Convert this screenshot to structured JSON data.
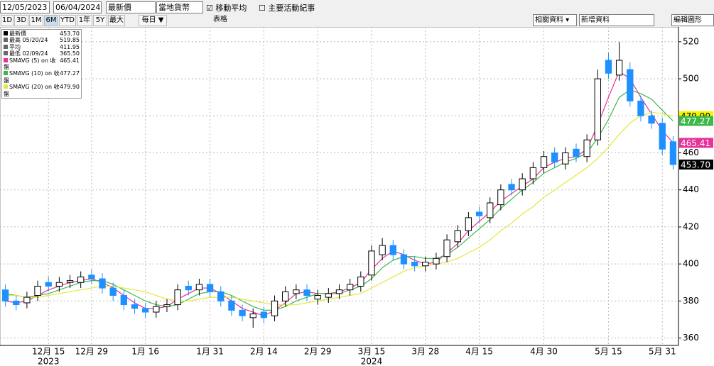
{
  "toolbar": {
    "start_date": "12/05/2023",
    "end_date": "06/04/2024",
    "price_field": "最新價",
    "currency": "當地貨幣",
    "moving_average": "移動平均",
    "events": "主要活動紀事",
    "periods": [
      "1D",
      "3D",
      "1M",
      "6M",
      "YTD",
      "1年",
      "5Y",
      "最大"
    ],
    "frequency": "每日 ▼",
    "table": "表格",
    "related": "相關資料 ▾",
    "add_data": "新增資料",
    "edit_chart": "編輯圖形"
  },
  "legend_rows": [
    {
      "label": "最新價",
      "value": "453.70"
    },
    {
      "label": "最高 05/20/24",
      "value": "519.85"
    },
    {
      "label": "平均",
      "value": "411.95"
    },
    {
      "label": "最低 02/09/24",
      "value": "365.50"
    },
    {
      "label": "SMAVG (5)  on 收盤",
      "value": "465.41"
    },
    {
      "label": "SMAVG (10)  on 收盤",
      "value": "477.27"
    },
    {
      "label": "SMAVG (20)  on 收盤",
      "value": "479.90"
    }
  ],
  "chart_data": {
    "type": "candlestick",
    "up_color": "#ffffff",
    "down_color": "#1e90ff",
    "grid": true,
    "categories": [
      null,
      null,
      null,
      null,
      "12月 15",
      null,
      null,
      null,
      "12月 29",
      null,
      null,
      null,
      null,
      "1月 16",
      null,
      null,
      null,
      null,
      null,
      "1月 31",
      null,
      null,
      null,
      null,
      "2月 14",
      null,
      null,
      null,
      null,
      "2月 29",
      null,
      null,
      null,
      null,
      "3月 15",
      null,
      null,
      null,
      null,
      "3月 28",
      null,
      null,
      null,
      null,
      "4月 15",
      null,
      null,
      null,
      null,
      null,
      "4月 30",
      null,
      null,
      null,
      null,
      null,
      "5月 15",
      null,
      null,
      null,
      null,
      "5月 31",
      null
    ],
    "year_categories": [
      null,
      null,
      null,
      null,
      "2023",
      null,
      null,
      null,
      null,
      null,
      null,
      null,
      null,
      null,
      null,
      null,
      null,
      null,
      null,
      null,
      null,
      null,
      null,
      null,
      null,
      null,
      null,
      null,
      null,
      null,
      null,
      null,
      null,
      null,
      "2024",
      null,
      null,
      null,
      null,
      null,
      null,
      null,
      null,
      null,
      null,
      null,
      null,
      null,
      null,
      null,
      null,
      null,
      null,
      null,
      null,
      null,
      null,
      null,
      null,
      null,
      null,
      null,
      null
    ],
    "open": [
      386,
      380,
      379,
      383,
      390,
      388,
      390,
      390,
      394,
      392,
      387,
      383,
      378,
      376,
      374,
      377,
      378,
      388,
      386,
      389,
      385,
      380,
      375,
      371,
      374,
      372,
      380,
      384,
      386,
      381,
      382,
      384,
      386,
      388,
      394,
      405,
      410,
      405,
      401,
      399,
      400,
      404,
      412,
      418,
      428,
      425,
      432,
      443,
      440,
      446,
      452,
      460,
      454,
      462,
      458,
      467,
      510,
      502,
      505,
      488,
      480,
      476,
      466
    ],
    "high": [
      389,
      383,
      385,
      391,
      393,
      393,
      394,
      396,
      397,
      395,
      390,
      386,
      381,
      379,
      380,
      381,
      389,
      391,
      392,
      392,
      388,
      383,
      378,
      376,
      377,
      383,
      388,
      389,
      389,
      386,
      387,
      389,
      392,
      396,
      410,
      414,
      413,
      408,
      404,
      404,
      406,
      416,
      421,
      428,
      431,
      436,
      443,
      446,
      449,
      455,
      461,
      463,
      463,
      465,
      470,
      505,
      514,
      519.85,
      509,
      491,
      483,
      479,
      469
    ],
    "low": [
      377,
      375,
      376,
      380,
      385,
      385,
      387,
      387,
      389,
      384,
      380,
      375,
      373,
      371,
      371,
      374,
      375,
      383,
      383,
      382,
      377,
      372,
      369,
      365.5,
      368,
      369,
      377,
      381,
      380,
      378,
      379,
      381,
      383,
      385,
      391,
      402,
      402,
      397,
      396,
      396,
      397,
      401,
      409,
      415,
      422,
      422,
      429,
      437,
      437,
      443,
      449,
      452,
      451,
      455,
      455,
      464,
      500,
      499,
      485,
      477,
      473,
      459,
      451
    ],
    "close": [
      380,
      378,
      382,
      388,
      388,
      390,
      391,
      393,
      392,
      387,
      383,
      378,
      376,
      374,
      377,
      378,
      386,
      386,
      389,
      385,
      380,
      375,
      372,
      373,
      371,
      380,
      385,
      386,
      383,
      383,
      384,
      386,
      389,
      393,
      407,
      410,
      405,
      400,
      399,
      401,
      403,
      413,
      418,
      425,
      426,
      433,
      440,
      440,
      446,
      452,
      458,
      455,
      460,
      458,
      467,
      500,
      503,
      510,
      488,
      480,
      476,
      462,
      453.7
    ],
    "series": [
      {
        "name": "SMAVG (5)",
        "color": "#e8319a",
        "values": [
          380,
          379,
          380,
          383,
          386,
          388,
          390,
          391,
          392,
          390,
          387,
          383,
          379,
          376,
          376,
          377,
          381,
          384,
          387,
          387,
          384,
          380,
          376,
          374,
          372,
          375,
          379,
          384,
          385,
          384,
          384,
          385,
          387,
          390,
          397,
          403,
          407,
          405,
          402,
          400,
          401,
          406,
          411,
          418,
          423,
          428,
          434,
          438,
          442,
          446,
          452,
          455,
          457,
          458,
          462,
          475,
          490,
          504,
          500,
          490,
          481,
          472,
          465.41
        ]
      },
      {
        "name": "SMAVG (10)",
        "color": "#3cb84a",
        "values": [
          384,
          383,
          382,
          383,
          384,
          386,
          388,
          390,
          391,
          391,
          389,
          386,
          383,
          380,
          378,
          377,
          378,
          381,
          384,
          385,
          385,
          383,
          380,
          377,
          375,
          375,
          377,
          380,
          382,
          384,
          384,
          384,
          386,
          388,
          392,
          398,
          402,
          404,
          404,
          403,
          403,
          405,
          409,
          414,
          419,
          424,
          430,
          435,
          440,
          444,
          449,
          452,
          455,
          457,
          460,
          468,
          478,
          490,
          494,
          492,
          489,
          483,
          477.27
        ]
      },
      {
        "name": "SMAVG (20)",
        "color": "#e6e640",
        "values": [
          383,
          383,
          382,
          382,
          383,
          384,
          385,
          386,
          387,
          388,
          388,
          387,
          386,
          385,
          383,
          381,
          380,
          380,
          381,
          382,
          382,
          382,
          381,
          380,
          379,
          378,
          378,
          378,
          379,
          380,
          381,
          382,
          383,
          384,
          387,
          390,
          393,
          396,
          398,
          399,
          400,
          401,
          403,
          406,
          409,
          413,
          418,
          422,
          427,
          431,
          436,
          440,
          444,
          448,
          452,
          457,
          463,
          470,
          476,
          480,
          482,
          481,
          479.9
        ]
      }
    ],
    "price_tags": [
      {
        "value": 479.9,
        "label": "479.90",
        "color": "#f5f500"
      },
      {
        "value": 477.27,
        "label": "477.27",
        "color": "#3cb84a"
      },
      {
        "value": 465.41,
        "label": "465.41",
        "color": "#e8319a"
      },
      {
        "value": 453.7,
        "label": "453.70",
        "color": "#000000"
      }
    ],
    "ylim": [
      356,
      528
    ],
    "yticks": [
      360,
      380,
      400,
      420,
      440,
      460,
      480,
      500,
      520
    ]
  }
}
